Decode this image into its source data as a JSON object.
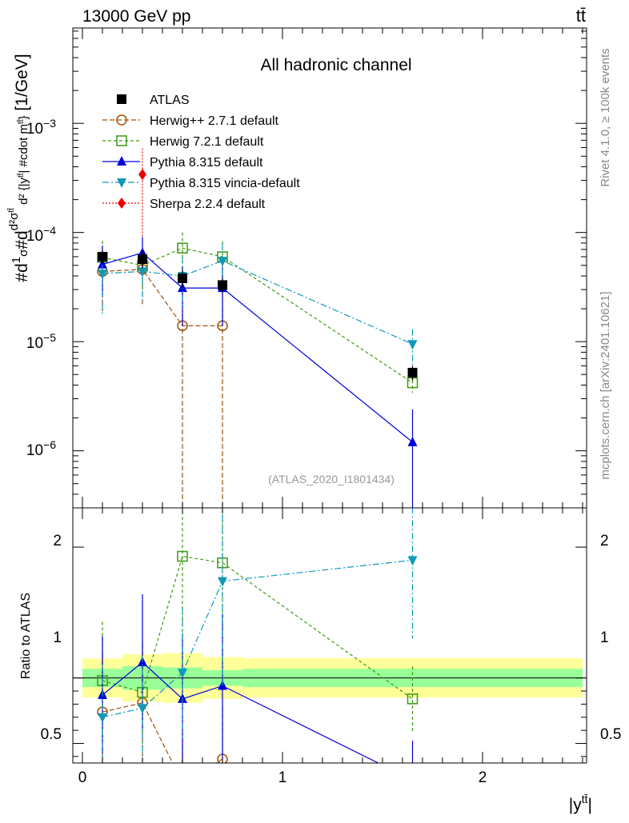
{
  "colors": {
    "atlas": "#000000",
    "herwigpp": "#a0500a",
    "herwig7": "#3a9a10",
    "pythia": "#0000dd",
    "vincia": "#1199bb",
    "sherpa": "#ee0000",
    "band_outer": "#ffff99",
    "band_inner": "#99ff99"
  },
  "header": {
    "energy": "13000 GeV pp",
    "process": "tt̄"
  },
  "side": {
    "rivet": "Rivet 4.1.0, ≥ 100k events",
    "mcplots": "mcplots.cern.ch [arXiv:2401.10621]"
  },
  "chart_data": {
    "type": "scatter",
    "title": "All hadronic channel",
    "analysis": "(ATLAS_2020_I1801434)",
    "xlabel": "|y^{tt̄}|",
    "ylabel": "#d\\frac{1}{σ}#d\\frac{d^{2}σ^{\\rm{tt̄}}}{d^{2} {|y^{tt̄}| #cdot m^{tt̄}}} [1/GeV]",
    "ratio_ylabel": "Ratio to ATLAS",
    "xlim": [
      -0.1,
      2.56
    ],
    "ylim_main": [
      3e-07,
      0.008
    ],
    "ylim_ratio": [
      0.35,
      2.3
    ],
    "main_y_ticks": [
      "10^{-3}",
      "10^{-4}",
      "10^{-5}",
      "10^{-6}"
    ],
    "ratio_y_ticks": [
      "0.5",
      "1",
      "2"
    ],
    "x_ticks": [
      "0",
      "1",
      "2"
    ],
    "x": [
      0.1,
      0.3,
      0.5,
      0.7,
      1.65
    ],
    "reference": {
      "name": "ATLAS",
      "values": [
        6e-05,
        5.7e-05,
        3.8e-05,
        3.3e-05,
        5.2e-06
      ],
      "err": [
        8e-06,
        1e-05,
        7e-06,
        5e-06,
        8e-07
      ],
      "band_edges": [
        0.0,
        0.2,
        0.4,
        0.6,
        0.8,
        2.5
      ],
      "band_outer": [
        0.15,
        0.18,
        0.19,
        0.16,
        0.15
      ],
      "band_inner": [
        0.07,
        0.09,
        0.08,
        0.06,
        0.07
      ]
    },
    "series": [
      {
        "name": "Herwig++ 2.7.1 default",
        "key": "herwigpp",
        "marker": "circle-open",
        "dash": "6,3",
        "values": [
          4.4e-05,
          4.6e-05,
          1.4e-05,
          1.4e-05,
          null
        ],
        "err": [
          2.5e-05,
          2.5e-05,
          1.4e-05,
          1.4e-05,
          null
        ],
        "ratio": [
          0.74,
          0.81,
          0.2,
          0.38,
          null
        ],
        "ratio_err": [
          0.45,
          0.45,
          0.4,
          0.4,
          null
        ]
      },
      {
        "name": "Herwig 7.2.1 default",
        "key": "herwig7",
        "marker": "square-open",
        "dash": "4,3",
        "values": [
          5.9e-05,
          5e-05,
          7.2e-05,
          6e-05,
          4.2e-06
        ],
        "err": [
          2.5e-05,
          2e-05,
          2.8e-05,
          2.3e-05,
          8e-07
        ],
        "ratio": [
          0.98,
          0.89,
          1.93,
          1.88,
          0.84
        ],
        "ratio_err": [
          0.45,
          0.4,
          0.9,
          0.8,
          0.25
        ]
      },
      {
        "name": "Pythia 8.315 default",
        "key": "pythia",
        "marker": "triangle-up",
        "dash": "",
        "values": [
          5.1e-05,
          6.5e-05,
          3.1e-05,
          3.1e-05,
          1.2e-06
        ],
        "err": [
          2.5e-05,
          2.6e-05,
          1.7e-05,
          1.7e-05,
          1.2e-06
        ],
        "ratio": [
          0.87,
          1.12,
          0.84,
          0.94,
          0.22
        ],
        "ratio_err": [
          0.45,
          0.52,
          0.5,
          0.55,
          0.3
        ]
      },
      {
        "name": "Pythia 8.315 vincia-default",
        "key": "vincia",
        "marker": "triangle-down",
        "dash": "8,3,2,3",
        "values": [
          4.2e-05,
          4.4e-05,
          4e-05,
          5.5e-05,
          9.5e-06
        ],
        "err": [
          2.4e-05,
          2.2e-05,
          2e-05,
          2.4e-05,
          3.5e-06
        ],
        "ratio": [
          0.7,
          0.77,
          1.04,
          1.74,
          1.9
        ],
        "ratio_err": [
          0.4,
          0.4,
          0.5,
          0.8,
          0.6
        ]
      },
      {
        "name": "Sherpa 2.2.4 default",
        "key": "sherpa",
        "marker": "diamond",
        "dash": "2,2",
        "values": [
          null,
          0.00034,
          null,
          null,
          null
        ],
        "err": [
          null,
          0.00025,
          null,
          null,
          null
        ],
        "ratio": [
          null,
          null,
          null,
          null,
          null
        ],
        "ratio_err": [
          null,
          null,
          null,
          null,
          null
        ]
      }
    ]
  }
}
